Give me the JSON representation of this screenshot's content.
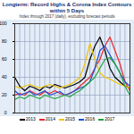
{
  "chart_data": {
    "type": "line",
    "title": "Longterm: Record Highs & Corona Index Contours within 5 Days",
    "subtitle": "Index through 2017 (daily), excluding forecast periods",
    "x": [
      1,
      2,
      3,
      4,
      5,
      6,
      7,
      8,
      9,
      10,
      11,
      12,
      13,
      14,
      15,
      16,
      17,
      18,
      19,
      20,
      21,
      22,
      23,
      24
    ],
    "xlim": [
      1,
      24
    ],
    "xticks": [
      1,
      2,
      3,
      4,
      5,
      6,
      7,
      8,
      9,
      10,
      11,
      12,
      13,
      14,
      15,
      16,
      17,
      18,
      19,
      20,
      21,
      22,
      23,
      24
    ],
    "ylim": [
      0,
      100
    ],
    "yticks": [
      0,
      20,
      40,
      60,
      80,
      100
    ],
    "grid": true,
    "tick_labels": "y",
    "series": [
      {
        "name": "2013",
        "color": "#000000",
        "values": [
          40,
          30,
          25,
          30,
          28,
          25,
          30,
          28,
          32,
          30,
          28,
          30,
          32,
          35,
          40,
          60,
          75,
          85,
          70,
          50,
          40,
          35,
          30,
          28
        ]
      },
      {
        "name": "2014",
        "color": "#e8262b",
        "values": [
          20,
          22,
          20,
          25,
          22,
          20,
          24,
          22,
          25,
          22,
          20,
          22,
          25,
          30,
          35,
          40,
          50,
          60,
          75,
          85,
          70,
          55,
          35,
          25
        ]
      },
      {
        "name": "2015",
        "color": "#f2c300",
        "values": [
          30,
          28,
          30,
          32,
          30,
          28,
          30,
          32,
          30,
          28,
          30,
          32,
          35,
          40,
          55,
          78,
          60,
          45,
          40,
          38,
          35,
          32,
          30,
          28
        ]
      },
      {
        "name": "2016",
        "color": "#1f4fd0",
        "values": [
          25,
          20,
          22,
          24,
          20,
          22,
          25,
          20,
          22,
          24,
          20,
          22,
          25,
          28,
          30,
          35,
          50,
          70,
          75,
          65,
          55,
          45,
          35,
          30
        ]
      },
      {
        "name": "2017",
        "color": "#22a33a",
        "values": [
          15,
          18,
          16,
          20,
          18,
          16,
          20,
          18,
          16,
          18,
          20,
          18,
          22,
          25,
          30,
          35,
          40,
          50,
          60,
          62,
          55,
          45,
          30,
          20
        ]
      }
    ]
  }
}
